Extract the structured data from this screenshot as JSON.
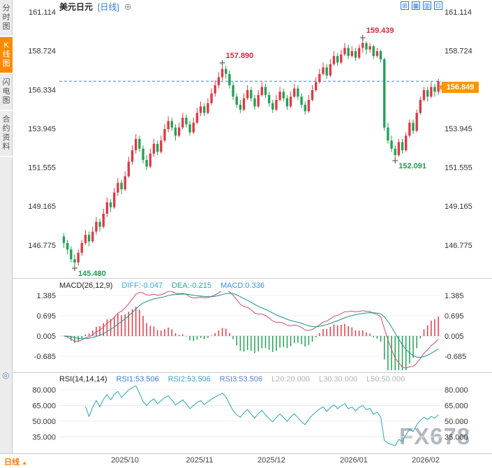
{
  "header": {
    "symbol": "美元日元",
    "timeframe_tag": "[日线]",
    "add_icon": "⊕"
  },
  "toolbar": {
    "icons": [
      {
        "name": "crosshair",
        "glyph": "⊞"
      },
      {
        "name": "grid",
        "glyph": "▦"
      },
      {
        "name": "chart-style",
        "glyph": "▥"
      },
      {
        "name": "fullscreen",
        "glyph": "⊡"
      }
    ]
  },
  "sidebar": {
    "tabs": [
      {
        "label": "分时图",
        "active": false
      },
      {
        "label": "K线图",
        "active": true
      },
      {
        "label": "闪电图",
        "active": false
      },
      {
        "label": "合约资料",
        "active": false
      }
    ]
  },
  "gutter": {
    "glyph": "◎"
  },
  "main_chart": {
    "price_tag": "156.849"
  },
  "macd_panel": {
    "title": "MACD(26,12,9)",
    "diff": "DIFF:-0.047",
    "dea": "DEA:-0.215",
    "macd": "MACD:0.336",
    "y_labels": [
      "1.385",
      "0.695",
      "0.005",
      "-0.685"
    ]
  },
  "rsi_panel": {
    "title": "RSI(14,14,14)",
    "rsi1": "RSI1:53.506",
    "rsi2": "RSI2:53.506",
    "rsi3": "RSI3:53.506",
    "l20": "L20:20.000",
    "l30": "L30:30.000",
    "l50": "L50:50.000",
    "y_labels": [
      "80.000",
      "65.000",
      "50.000",
      "35.000"
    ]
  },
  "x_axis": {
    "timeframe_label": "日线",
    "arrow": "▲"
  },
  "watermark": "FX678",
  "colors": {
    "up": "#dd3b47",
    "down": "#23a154",
    "accent_orange": "#ff8a00",
    "link_blue": "#2b7bd4",
    "dashed_line": "#3a87c8",
    "diff_line": "#c9506a",
    "dea_line": "#188f96",
    "rsi_line": "#2aa3b5",
    "annotation_red": "#d6283c",
    "annotation_green": "#1f9e4e",
    "watermark": "#a9b1ba"
  },
  "chart_data": {
    "type": "candlestick",
    "symbol": "美元日元",
    "period": "日线",
    "price_axis": {
      "labels": [
        "161.114",
        "158.724",
        "156.334",
        "153.945",
        "151.555",
        "149.165",
        "146.775"
      ]
    },
    "current_price": 156.849,
    "annotations": [
      {
        "index": 3,
        "price": 145.48,
        "label": "145.480",
        "color": "green",
        "side": "below"
      },
      {
        "index": 44,
        "price": 157.89,
        "label": "157.890",
        "color": "red",
        "side": "above"
      },
      {
        "index": 83,
        "price": 159.439,
        "label": "159.439",
        "color": "red",
        "side": "above"
      },
      {
        "index": 92,
        "price": 152.091,
        "label": "152.091",
        "color": "green",
        "side": "below"
      }
    ],
    "x_labels": [
      {
        "index": 17,
        "text": "2025/10"
      },
      {
        "index": 38,
        "text": "2025/11"
      },
      {
        "index": 58,
        "text": "2025/12"
      },
      {
        "index": 81,
        "text": "2026/01"
      },
      {
        "index": 101,
        "text": "2026/02"
      }
    ],
    "indicators": {
      "macd": {
        "diff": -0.047,
        "dea": -0.215,
        "macd": 0.336
      },
      "rsi": {
        "rsi1": 53.506,
        "rsi2": 53.506,
        "rsi3": 53.506,
        "l20": 20.0,
        "l30": 30.0,
        "l50": 50.0
      }
    },
    "candles": [
      [
        147.3,
        147.5,
        146.6,
        146.9
      ],
      [
        146.9,
        147.1,
        146.2,
        146.5
      ],
      [
        146.5,
        146.7,
        145.7,
        145.9
      ],
      [
        145.9,
        146.2,
        145.48,
        145.7
      ],
      [
        145.7,
        146.5,
        145.5,
        146.3
      ],
      [
        146.3,
        147.1,
        146.1,
        146.9
      ],
      [
        146.9,
        147.7,
        146.8,
        147.4
      ],
      [
        147.4,
        147.6,
        146.7,
        147.0
      ],
      [
        147.0,
        147.9,
        146.9,
        147.6
      ],
      [
        147.6,
        148.5,
        147.4,
        148.2
      ],
      [
        148.2,
        148.4,
        147.6,
        147.9
      ],
      [
        147.9,
        149.0,
        147.8,
        148.7
      ],
      [
        148.7,
        149.7,
        148.5,
        149.4
      ],
      [
        149.4,
        149.6,
        148.8,
        149.1
      ],
      [
        149.1,
        150.3,
        149.0,
        150.0
      ],
      [
        150.0,
        150.9,
        149.8,
        150.6
      ],
      [
        150.6,
        150.8,
        149.9,
        150.2
      ],
      [
        150.2,
        151.3,
        150.1,
        151.0
      ],
      [
        151.0,
        152.2,
        150.9,
        151.9
      ],
      [
        151.9,
        152.9,
        151.7,
        152.6
      ],
      [
        152.6,
        153.6,
        152.4,
        153.3
      ],
      [
        153.3,
        153.5,
        152.5,
        152.7
      ],
      [
        152.7,
        152.9,
        151.8,
        152.0
      ],
      [
        152.0,
        152.3,
        151.4,
        151.6
      ],
      [
        151.6,
        152.7,
        151.5,
        152.4
      ],
      [
        152.4,
        153.3,
        152.2,
        153.0
      ],
      [
        153.0,
        153.2,
        152.3,
        152.5
      ],
      [
        152.5,
        153.5,
        152.4,
        153.2
      ],
      [
        153.2,
        154.2,
        153.1,
        153.9
      ],
      [
        153.9,
        154.7,
        153.7,
        154.4
      ],
      [
        154.4,
        154.6,
        153.8,
        154.0
      ],
      [
        154.0,
        154.2,
        153.2,
        153.5
      ],
      [
        153.5,
        154.3,
        153.4,
        154.0
      ],
      [
        154.0,
        154.9,
        153.9,
        154.6
      ],
      [
        154.6,
        154.8,
        154.0,
        154.2
      ],
      [
        154.2,
        154.4,
        153.5,
        153.7
      ],
      [
        153.7,
        154.6,
        153.6,
        154.3
      ],
      [
        154.3,
        155.2,
        154.2,
        154.9
      ],
      [
        154.9,
        155.6,
        154.7,
        155.3
      ],
      [
        155.3,
        155.5,
        154.7,
        154.9
      ],
      [
        154.9,
        155.8,
        154.8,
        155.5
      ],
      [
        155.5,
        156.4,
        155.4,
        156.1
      ],
      [
        156.1,
        156.9,
        155.9,
        156.6
      ],
      [
        156.6,
        157.4,
        156.4,
        157.1
      ],
      [
        157.1,
        157.89,
        156.9,
        157.6
      ],
      [
        157.6,
        157.8,
        157.0,
        157.3
      ],
      [
        157.3,
        157.5,
        156.4,
        156.6
      ],
      [
        156.6,
        156.8,
        155.7,
        155.9
      ],
      [
        155.9,
        156.1,
        155.2,
        155.4
      ],
      [
        155.4,
        155.7,
        154.9,
        155.1
      ],
      [
        155.1,
        156.1,
        155.0,
        155.8
      ],
      [
        155.8,
        156.6,
        155.7,
        156.3
      ],
      [
        156.3,
        156.5,
        155.6,
        155.8
      ],
      [
        155.8,
        156.0,
        155.1,
        155.3
      ],
      [
        155.3,
        156.3,
        155.2,
        156.0
      ],
      [
        156.0,
        156.8,
        155.9,
        156.5
      ],
      [
        156.5,
        156.7,
        155.8,
        156.0
      ],
      [
        156.0,
        156.2,
        155.3,
        155.5
      ],
      [
        155.5,
        155.7,
        154.9,
        155.1
      ],
      [
        155.1,
        156.0,
        155.0,
        155.7
      ],
      [
        155.7,
        156.5,
        155.6,
        156.2
      ],
      [
        156.2,
        156.4,
        155.6,
        155.8
      ],
      [
        155.8,
        156.0,
        155.1,
        155.3
      ],
      [
        155.3,
        156.2,
        155.2,
        155.9
      ],
      [
        155.9,
        156.7,
        155.8,
        156.4
      ],
      [
        156.4,
        156.6,
        155.7,
        155.9
      ],
      [
        155.9,
        156.1,
        155.2,
        155.4
      ],
      [
        155.4,
        155.6,
        154.8,
        155.0
      ],
      [
        155.0,
        156.0,
        154.9,
        155.7
      ],
      [
        155.7,
        156.6,
        155.6,
        156.3
      ],
      [
        156.3,
        157.1,
        156.2,
        156.8
      ],
      [
        156.8,
        157.6,
        156.7,
        157.3
      ],
      [
        157.3,
        158.0,
        157.2,
        157.7
      ],
      [
        157.7,
        157.9,
        157.0,
        157.2
      ],
      [
        157.2,
        158.2,
        157.1,
        157.9
      ],
      [
        157.9,
        158.7,
        157.8,
        158.4
      ],
      [
        158.4,
        158.6,
        157.8,
        158.0
      ],
      [
        158.0,
        158.8,
        157.9,
        158.5
      ],
      [
        158.5,
        159.2,
        158.4,
        158.9
      ],
      [
        158.9,
        159.1,
        158.2,
        158.4
      ],
      [
        158.4,
        159.0,
        158.3,
        158.7
      ],
      [
        158.7,
        158.9,
        158.1,
        158.3
      ],
      [
        158.3,
        159.1,
        158.2,
        158.9
      ],
      [
        158.9,
        159.439,
        158.6,
        159.2
      ],
      [
        159.2,
        159.3,
        158.5,
        158.8
      ],
      [
        158.8,
        159.2,
        158.6,
        159.0
      ],
      [
        159.0,
        159.1,
        158.2,
        158.4
      ],
      [
        158.4,
        158.9,
        158.3,
        158.7
      ],
      [
        158.7,
        158.8,
        158.0,
        158.2
      ],
      [
        158.2,
        158.3,
        153.8,
        154.0
      ],
      [
        154.0,
        154.3,
        153.0,
        153.2
      ],
      [
        153.2,
        153.5,
        152.5,
        152.7
      ],
      [
        152.7,
        152.9,
        152.091,
        152.3
      ],
      [
        152.3,
        153.3,
        152.2,
        153.1
      ],
      [
        153.1,
        153.3,
        152.4,
        152.6
      ],
      [
        152.6,
        153.7,
        152.5,
        153.5
      ],
      [
        153.5,
        154.5,
        153.4,
        154.3
      ],
      [
        154.3,
        154.5,
        153.6,
        153.8
      ],
      [
        153.8,
        155.1,
        153.7,
        154.9
      ],
      [
        154.9,
        155.9,
        154.8,
        155.7
      ],
      [
        155.7,
        156.5,
        155.6,
        156.3
      ],
      [
        156.3,
        156.5,
        155.6,
        155.9
      ],
      [
        155.9,
        156.8,
        155.8,
        156.5
      ],
      [
        156.5,
        156.7,
        155.9,
        156.2
      ],
      [
        156.2,
        157.0,
        156.0,
        156.849
      ]
    ]
  }
}
